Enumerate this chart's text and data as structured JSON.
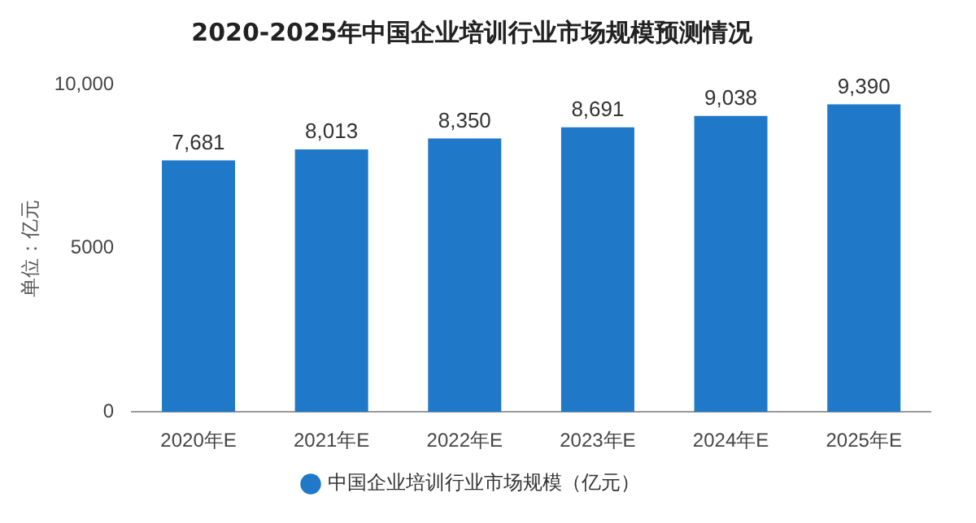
{
  "chart_data": {
    "type": "bar",
    "title": "2020-2025年中国企业培训行业市场规模预测情况",
    "ylabel": "单位：亿元",
    "categories": [
      "2020年E",
      "2021年E",
      "2022年E",
      "2023年E",
      "2024年E",
      "2025年E"
    ],
    "series": [
      {
        "name": "中国企业培训行业市场规模（亿元）",
        "color": "#1f78c8",
        "values": [
          7681,
          8013,
          8350,
          8691,
          9038,
          9390
        ],
        "value_labels": [
          "7,681",
          "8,013",
          "8,350",
          "8,691",
          "9,038",
          "9,390"
        ]
      }
    ],
    "ylim": [
      0,
      10000
    ],
    "yticks": [
      0,
      {
        "value": 5000,
        "label": "5000"
      },
      {
        "value": 10000,
        "label": "10,000"
      }
    ],
    "grid": false,
    "legend": "bottom"
  }
}
